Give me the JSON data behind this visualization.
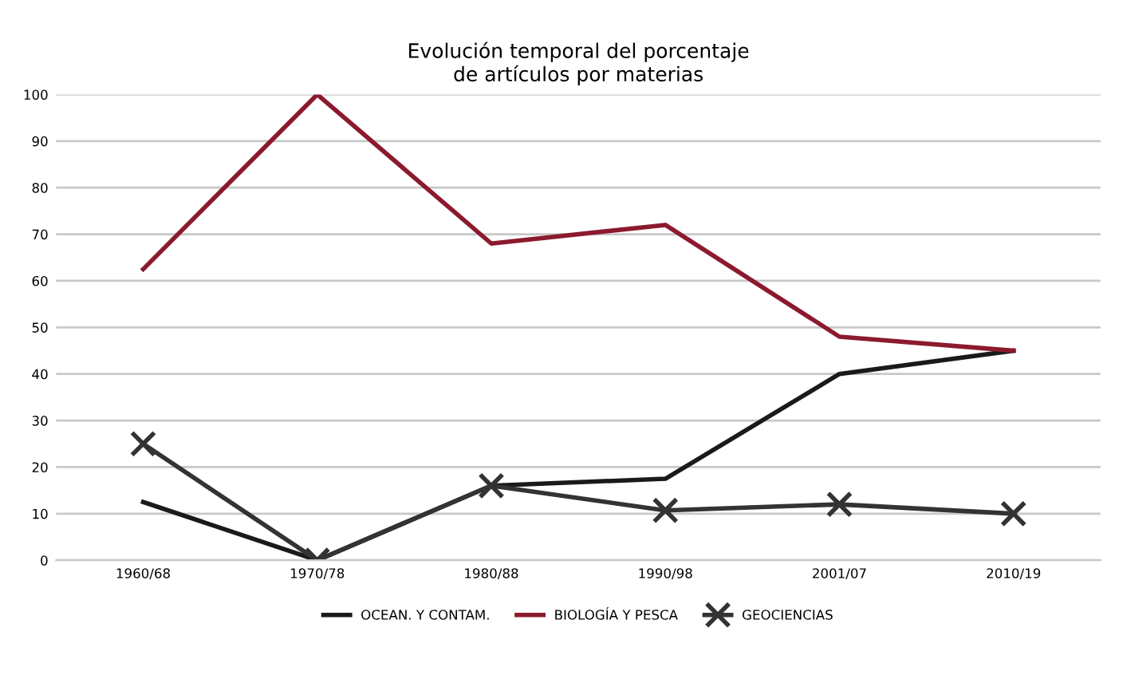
{
  "chart_data": {
    "type": "line",
    "title": "Evolución temporal del porcentaje\nde artículos por materias",
    "categories": [
      "1960/68",
      "1970/78",
      "1980/88",
      "1990/98",
      "2001/07",
      "2010/19"
    ],
    "series": [
      {
        "name": "OCEAN. Y CONTAM.",
        "color": "#1a1a1a",
        "values": [
          12.5,
          0,
          16,
          17.5,
          40,
          45
        ]
      },
      {
        "name": "BIOLOGÍA Y PESCA",
        "color": "#8b1a2e",
        "values": [
          62.5,
          100,
          68,
          72,
          48,
          45
        ]
      },
      {
        "name": "GEOCIENCIAS",
        "color": "#333333",
        "marker": "cross",
        "values": [
          25,
          0,
          16,
          10.7,
          12,
          10
        ]
      }
    ],
    "ylim": [
      0,
      100
    ],
    "yticks": [
      0,
      10,
      20,
      30,
      40,
      50,
      60,
      70,
      80,
      90,
      100
    ],
    "grid": "y",
    "legend": "bottom"
  }
}
